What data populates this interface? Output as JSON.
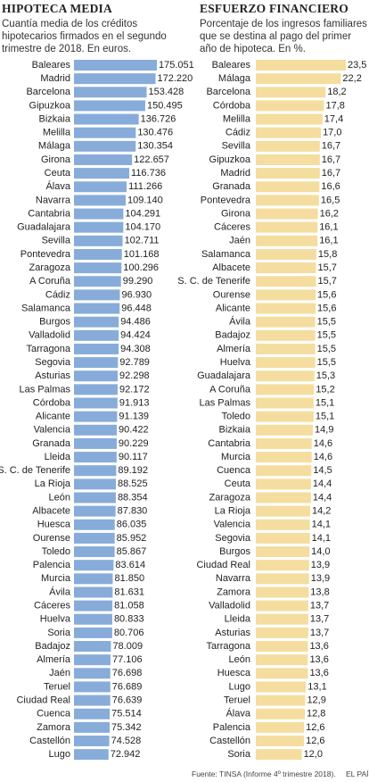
{
  "chart_data": [
    {
      "type": "bar",
      "orientation": "horizontal",
      "title": "HIPOTECA MEDIA",
      "subtitle": "Cuantía media de los créditos hipotecarios firmados en el segundo trimestre de 2018. En euros.",
      "color": "#87acd9",
      "categories": [
        "Baleares",
        "Madrid",
        "Barcelona",
        "Gipuzkoa",
        "Bizkaia",
        "Melilla",
        "Málaga",
        "Girona",
        "Ceuta",
        "Álava",
        "Navarra",
        "Cantabria",
        "Guadalajara",
        "Sevilla",
        "Pontevedra",
        "Zaragoza",
        "A Coruña",
        "Cádiz",
        "Salamanca",
        "Burgos",
        "Valladolid",
        "Tarragona",
        "Segovia",
        "Asturias",
        "Las Palmas",
        "Córdoba",
        "Alicante",
        "Valencia",
        "Granada",
        "Lleida",
        "S. C. de Tenerife",
        "La Rioja",
        "León",
        "Albacete",
        "Huesca",
        "Ourense",
        "Toledo",
        "Palencia",
        "Murcia",
        "Ávila",
        "Cáceres",
        "Huelva",
        "Soria",
        "Badajoz",
        "Almería",
        "Jaén",
        "Teruel",
        "Ciudad Real",
        "Cuenca",
        "Zamora",
        "Castellón",
        "Lugo"
      ],
      "values": [
        175051,
        172220,
        153428,
        150495,
        136726,
        130476,
        130354,
        122657,
        116736,
        111266,
        109140,
        104291,
        104170,
        102711,
        101168,
        100296,
        99290,
        96930,
        96448,
        94486,
        94424,
        94308,
        92789,
        92298,
        92172,
        91913,
        91139,
        90422,
        90229,
        90117,
        89192,
        88525,
        88354,
        87830,
        86035,
        85952,
        85867,
        83614,
        81850,
        81631,
        81058,
        80833,
        80706,
        78009,
        77106,
        76698,
        76689,
        76639,
        75514,
        75342,
        74528,
        72942
      ],
      "value_labels": [
        "175.051",
        "172.220",
        "153.428",
        "150.495",
        "136.726",
        "130.476",
        "130.354",
        "122.657",
        "116.736",
        "111.266",
        "109.140",
        "104.291",
        "104.170",
        "102.711",
        "101.168",
        "100.296",
        "99.290",
        "96.930",
        "96.448",
        "94.486",
        "94.424",
        "94.308",
        "92.789",
        "92.298",
        "92.172",
        "91.913",
        "91.139",
        "90.422",
        "90.229",
        "90.117",
        "89.192",
        "88.525",
        "88.354",
        "87.830",
        "86.035",
        "85.952",
        "85.867",
        "83.614",
        "81.850",
        "81.631",
        "81.058",
        "80.833",
        "80.706",
        "78.009",
        "77.106",
        "76.698",
        "76.689",
        "76.639",
        "75.514",
        "75.342",
        "74.528",
        "72.942"
      ]
    },
    {
      "type": "bar",
      "orientation": "horizontal",
      "title": "ESFUERZO FINANCIERO",
      "subtitle": "Porcentaje de los ingresos familiares que se destina al pago del primer año de hipoteca. En %.",
      "color": "#f4dd9e",
      "categories": [
        "Baleares",
        "Málaga",
        "Barcelona",
        "Córdoba",
        "Melilla",
        "Cádiz",
        "Sevilla",
        "Gipuzkoa",
        "Madrid",
        "Granada",
        "Pontevedra",
        "Girona",
        "Cáceres",
        "Jaén",
        "Salamanca",
        "Albacete",
        "S. C. de Tenerife",
        "Ourense",
        "Alicante",
        "Ávila",
        "Badajoz",
        "Almería",
        "Huelva",
        "Guadalajara",
        "A Coruña",
        "Las Palmas",
        "Toledo",
        "Bizkaia",
        "Cantabria",
        "Murcia",
        "Cuenca",
        "Ceuta",
        "Zaragoza",
        "La Rioja",
        "Valencia",
        "Segovia",
        "Burgos",
        "Ciudad Real",
        "Navarra",
        "Zamora",
        "Valladolid",
        "Lleida",
        "Asturias",
        "Tarragona",
        "León",
        "Huesca",
        "Lugo",
        "Teruel",
        "Álava",
        "Palencia",
        "Castellón",
        "Soria"
      ],
      "values": [
        23.5,
        22.2,
        18.2,
        17.8,
        17.4,
        17.0,
        16.7,
        16.7,
        16.7,
        16.6,
        16.5,
        16.2,
        16.1,
        16.1,
        15.8,
        15.7,
        15.7,
        15.6,
        15.6,
        15.5,
        15.5,
        15.5,
        15.5,
        15.3,
        15.2,
        15.1,
        15.1,
        14.9,
        14.6,
        14.6,
        14.5,
        14.4,
        14.4,
        14.2,
        14.1,
        14.1,
        14.0,
        13.9,
        13.9,
        13.8,
        13.7,
        13.7,
        13.7,
        13.6,
        13.6,
        13.6,
        13.1,
        12.9,
        12.8,
        12.6,
        12.6,
        12.0
      ],
      "value_labels": [
        "23,5",
        "22,2",
        "18,2",
        "17,8",
        "17,4",
        "17,0",
        "16,7",
        "16,7",
        "16,7",
        "16,6",
        "16,5",
        "16,2",
        "16,1",
        "16,1",
        "15,8",
        "15,7",
        "15,7",
        "15,6",
        "15,6",
        "15,5",
        "15,5",
        "15,5",
        "15,5",
        "15,3",
        "15,2",
        "15,1",
        "15,1",
        "14,9",
        "14,6",
        "14,6",
        "14,5",
        "14,4",
        "14,4",
        "14,2",
        "14,1",
        "14,1",
        "14,0",
        "13,9",
        "13,9",
        "13,8",
        "13,7",
        "13,7",
        "13,7",
        "13,6",
        "13,6",
        "13,6",
        "13,1",
        "12,9",
        "12,8",
        "12,6",
        "12,6",
        "12,0"
      ]
    }
  ],
  "footer": {
    "source": "Fuente: TINSA (Informe 4º trimestre 2018).",
    "brand": "EL PAÍS"
  }
}
